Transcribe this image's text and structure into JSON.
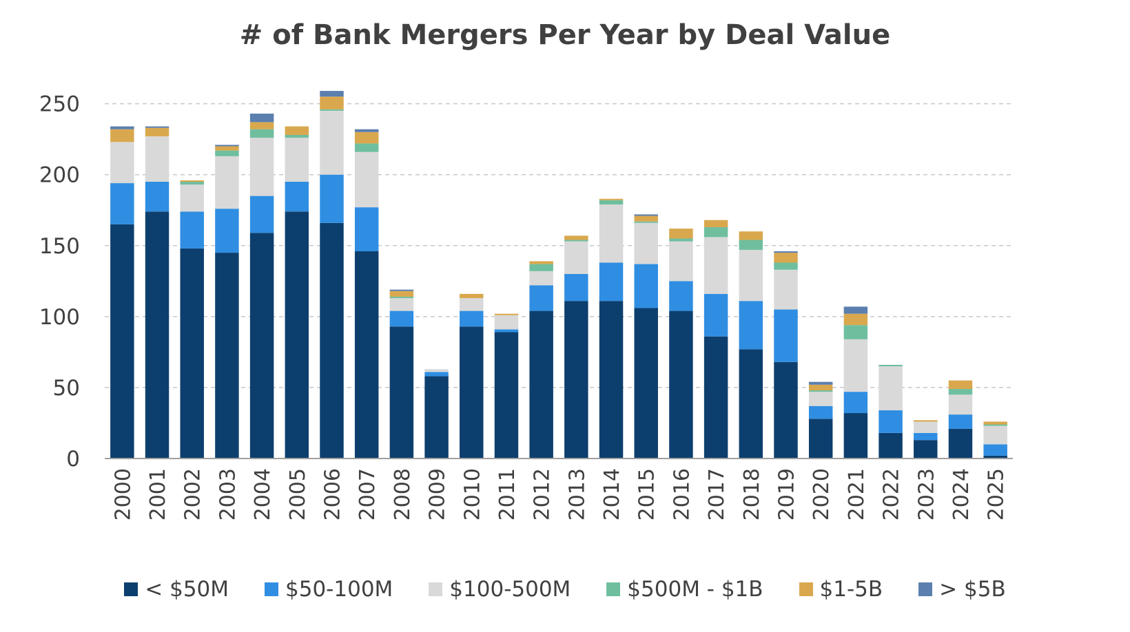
{
  "chart_data": {
    "type": "bar",
    "stacked": true,
    "title": "# of Bank Mergers Per Year by Deal Value",
    "xlabel": "",
    "ylabel": "",
    "ylim": [
      0,
      260
    ],
    "yticks": [
      0,
      50,
      100,
      150,
      200,
      250
    ],
    "grid": "horizontal-dashed",
    "legend_position": "bottom",
    "categories": [
      "2000",
      "2001",
      "2002",
      "2003",
      "2004",
      "2005",
      "2006",
      "2007",
      "2008",
      "2009",
      "2010",
      "2011",
      "2012",
      "2013",
      "2014",
      "2015",
      "2016",
      "2017",
      "2018",
      "2019",
      "2020",
      "2021",
      "2022",
      "2023",
      "2024",
      "2025"
    ],
    "series": [
      {
        "name": "< $50M",
        "color": "#0d3f6e",
        "values": [
          165,
          174,
          148,
          145,
          159,
          174,
          166,
          146,
          93,
          58,
          93,
          89,
          104,
          111,
          111,
          106,
          104,
          86,
          77,
          68,
          28,
          32,
          18,
          13,
          21,
          2
        ]
      },
      {
        "name": "$50-100M",
        "color": "#2f8ee2",
        "values": [
          29,
          21,
          26,
          31,
          26,
          21,
          34,
          31,
          11,
          3,
          11,
          2,
          18,
          19,
          27,
          31,
          21,
          30,
          34,
          37,
          9,
          15,
          16,
          5,
          10,
          8
        ]
      },
      {
        "name": "$100-500M",
        "color": "#d9d9d9",
        "values": [
          29,
          32,
          19,
          37,
          41,
          31,
          45,
          39,
          9,
          2,
          9,
          10,
          10,
          23,
          41,
          29,
          28,
          40,
          36,
          28,
          10,
          37,
          31,
          8,
          14,
          13
        ]
      },
      {
        "name": "$500M - $1B",
        "color": "#6fbf9f",
        "values": [
          0,
          0,
          2,
          4,
          6,
          2,
          1,
          6,
          1,
          0,
          0,
          0,
          5,
          1,
          3,
          1,
          2,
          7,
          7,
          5,
          1,
          10,
          1,
          0,
          4,
          1
        ]
      },
      {
        "name": "$1-5B",
        "color": "#d9a84e",
        "values": [
          9,
          6,
          1,
          3,
          5,
          6,
          9,
          8,
          4,
          0,
          3,
          1,
          2,
          3,
          1,
          4,
          7,
          5,
          6,
          7,
          4,
          8,
          0,
          1,
          6,
          2
        ]
      },
      {
        "name": "> $5B",
        "color": "#5b7fae",
        "values": [
          2,
          1,
          0,
          1,
          6,
          0,
          4,
          2,
          1,
          0,
          0,
          0,
          0,
          0,
          0,
          1,
          0,
          0,
          0,
          1,
          2,
          5,
          0,
          0,
          0,
          0
        ]
      }
    ]
  }
}
